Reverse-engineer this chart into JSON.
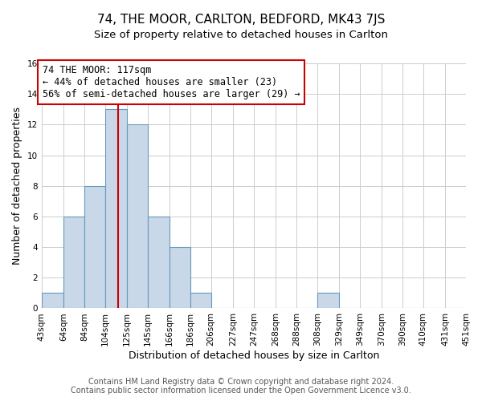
{
  "title": "74, THE MOOR, CARLTON, BEDFORD, MK43 7JS",
  "subtitle": "Size of property relative to detached houses in Carlton",
  "xlabel": "Distribution of detached houses by size in Carlton",
  "ylabel": "Number of detached properties",
  "footnote1": "Contains HM Land Registry data © Crown copyright and database right 2024.",
  "footnote2": "Contains public sector information licensed under the Open Government Licence v3.0.",
  "bins": [
    43,
    64,
    84,
    104,
    125,
    145,
    166,
    186,
    206,
    227,
    247,
    268,
    288,
    308,
    329,
    349,
    370,
    390,
    410,
    431,
    451
  ],
  "bin_labels": [
    "43sqm",
    "64sqm",
    "84sqm",
    "104sqm",
    "125sqm",
    "145sqm",
    "166sqm",
    "186sqm",
    "206sqm",
    "227sqm",
    "247sqm",
    "268sqm",
    "288sqm",
    "308sqm",
    "329sqm",
    "349sqm",
    "370sqm",
    "390sqm",
    "410sqm",
    "431sqm",
    "451sqm"
  ],
  "counts": [
    1,
    6,
    8,
    13,
    12,
    6,
    4,
    1,
    0,
    0,
    0,
    0,
    0,
    1,
    0,
    0,
    0,
    0,
    0,
    0
  ],
  "bar_color": "#c8d8e8",
  "bar_edge_color": "#6699bb",
  "vline_x": 117,
  "vline_color": "#cc0000",
  "annotation_line1": "74 THE MOOR: 117sqm",
  "annotation_line2": "← 44% of detached houses are smaller (23)",
  "annotation_line3": "56% of semi-detached houses are larger (29) →",
  "annotation_box_color": "white",
  "annotation_box_edge": "#cc0000",
  "ylim": [
    0,
    16
  ],
  "yticks": [
    0,
    2,
    4,
    6,
    8,
    10,
    12,
    14,
    16
  ],
  "grid_color": "#cccccc",
  "title_fontsize": 11,
  "subtitle_fontsize": 9.5,
  "axis_label_fontsize": 9,
  "tick_fontsize": 7.5,
  "annotation_fontsize": 8.5,
  "footnote_fontsize": 7
}
